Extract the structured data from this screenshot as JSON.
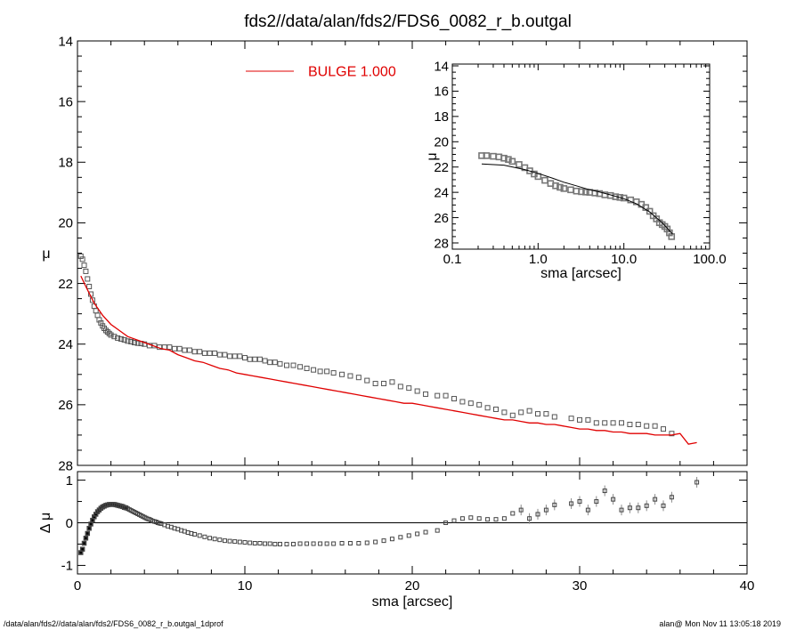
{
  "title": "fds2//data/alan/fds2/FDS6_0082_r_b.outgal",
  "footer": {
    "left": "/data/alan/fds2//data/alan/fds2/FDS6_0082_r_b.outgal_1dprof",
    "right": "alan@  Mon Nov 11 13:05:18 2019"
  },
  "legend": {
    "label": "BULGE  1.000",
    "color": "#e00000"
  },
  "chart_data": [
    {
      "type": "scatter",
      "panel": "main",
      "title": "fds2//data/alan/fds2/FDS6_0082_r_b.outgal",
      "xlabel": "",
      "ylabel": "μ",
      "xlim": [
        0,
        40
      ],
      "ylim": [
        28,
        14
      ],
      "y_inverted": true,
      "x_ticks": [
        0,
        10,
        20,
        30,
        40
      ],
      "y_ticks": [
        14,
        16,
        18,
        20,
        22,
        24,
        26,
        28
      ],
      "y_tick_labels": [
        "14",
        "16",
        "18",
        "20",
        "22",
        "24",
        "26",
        "28"
      ],
      "series": [
        {
          "name": "data",
          "marker": "open-square",
          "color": "#555555",
          "x": [
            0.2,
            0.3,
            0.4,
            0.5,
            0.6,
            0.7,
            0.8,
            0.9,
            1.0,
            1.1,
            1.2,
            1.3,
            1.4,
            1.5,
            1.6,
            1.7,
            1.8,
            1.9,
            2.0,
            2.2,
            2.4,
            2.6,
            2.8,
            3.0,
            3.2,
            3.4,
            3.6,
            3.8,
            4.0,
            4.3,
            4.6,
            4.9,
            5.2,
            5.5,
            5.8,
            6.1,
            6.4,
            6.7,
            7.0,
            7.3,
            7.6,
            7.9,
            8.2,
            8.5,
            8.8,
            9.1,
            9.4,
            9.7,
            10.0,
            10.3,
            10.6,
            10.9,
            11.2,
            11.5,
            11.8,
            12.1,
            12.5,
            12.9,
            13.3,
            13.7,
            14.1,
            14.5,
            14.9,
            15.3,
            15.8,
            16.3,
            16.8,
            17.3,
            17.8,
            18.3,
            18.8,
            19.3,
            19.8,
            20.3,
            20.8,
            21.5,
            22.0,
            22.5,
            23.0,
            23.5,
            24.0,
            24.5,
            25.0,
            25.5,
            26.0,
            26.5,
            27.0,
            27.5,
            28.0,
            28.5,
            29.5,
            30.0,
            30.5,
            31.0,
            31.5,
            32.0,
            32.5,
            33.0,
            33.5,
            34.0,
            34.5,
            35.0,
            35.5
          ],
          "y": [
            21.1,
            21.2,
            21.4,
            21.6,
            21.85,
            22.1,
            22.35,
            22.55,
            22.75,
            22.9,
            23.05,
            23.2,
            23.3,
            23.4,
            23.48,
            23.55,
            23.6,
            23.65,
            23.7,
            23.75,
            23.8,
            23.83,
            23.86,
            23.9,
            23.92,
            23.95,
            23.97,
            23.98,
            24.0,
            24.05,
            24.05,
            24.1,
            24.1,
            24.1,
            24.15,
            24.15,
            24.2,
            24.2,
            24.25,
            24.25,
            24.3,
            24.3,
            24.3,
            24.35,
            24.35,
            24.4,
            24.4,
            24.4,
            24.45,
            24.5,
            24.5,
            24.5,
            24.55,
            24.6,
            24.6,
            24.65,
            24.7,
            24.7,
            24.75,
            24.8,
            24.85,
            24.9,
            24.9,
            24.95,
            25.0,
            25.05,
            25.1,
            25.2,
            25.3,
            25.3,
            25.25,
            25.4,
            25.45,
            25.55,
            25.65,
            25.7,
            25.7,
            25.8,
            25.9,
            25.95,
            26.0,
            26.1,
            26.15,
            26.25,
            26.35,
            26.25,
            26.2,
            26.3,
            26.3,
            26.4,
            26.45,
            26.5,
            26.5,
            26.6,
            26.6,
            26.6,
            26.6,
            26.65,
            26.65,
            26.7,
            26.7,
            26.8,
            26.95
          ]
        },
        {
          "name": "BULGE  1.000",
          "marker": "line",
          "color": "#e00000",
          "x": [
            0.2,
            0.5,
            1.0,
            1.5,
            2.0,
            2.5,
            3.0,
            3.5,
            4.0,
            4.5,
            5.0,
            5.5,
            6.0,
            6.5,
            7.0,
            7.5,
            8.0,
            8.5,
            9.0,
            9.5,
            10.0,
            10.5,
            11.0,
            11.5,
            12.0,
            12.5,
            13.0,
            13.5,
            14.0,
            14.5,
            15.0,
            15.5,
            16.0,
            16.5,
            17.0,
            17.5,
            18.0,
            18.5,
            19.0,
            19.5,
            20.0,
            20.5,
            21.0,
            21.5,
            22.0,
            22.5,
            23.0,
            23.5,
            24.0,
            24.5,
            25.0,
            25.5,
            26.0,
            26.5,
            27.0,
            27.5,
            28.0,
            28.5,
            29.0,
            29.5,
            30.0,
            30.5,
            31.0,
            31.5,
            32.0,
            32.5,
            33.0,
            33.5,
            34.0,
            34.5,
            35.0,
            35.5,
            36.0,
            36.5,
            37.0
          ],
          "y": [
            21.75,
            22.1,
            22.65,
            23.05,
            23.35,
            23.55,
            23.75,
            23.85,
            23.95,
            24.05,
            24.15,
            24.2,
            24.35,
            24.45,
            24.55,
            24.6,
            24.7,
            24.8,
            24.85,
            24.95,
            25.0,
            25.05,
            25.1,
            25.15,
            25.2,
            25.25,
            25.3,
            25.35,
            25.4,
            25.45,
            25.5,
            25.55,
            25.6,
            25.65,
            25.7,
            25.75,
            25.8,
            25.85,
            25.9,
            25.95,
            25.95,
            26.0,
            26.05,
            26.1,
            26.15,
            26.2,
            26.25,
            26.3,
            26.35,
            26.4,
            26.45,
            26.5,
            26.5,
            26.55,
            26.6,
            26.6,
            26.65,
            26.65,
            26.7,
            26.75,
            26.8,
            26.8,
            26.85,
            26.85,
            26.9,
            26.9,
            26.95,
            26.95,
            26.95,
            27.0,
            27.0,
            27.0,
            26.95,
            27.3,
            27.25
          ]
        }
      ]
    },
    {
      "type": "scatter",
      "panel": "residual",
      "xlabel": "sma [arcsec]",
      "ylabel": "Δ μ",
      "xlim": [
        0,
        40
      ],
      "ylim": [
        -1.2,
        1.2
      ],
      "x_ticks": [
        0,
        10,
        20,
        30,
        40
      ],
      "x_tick_labels": [
        "0",
        "10",
        "20",
        "30",
        "40"
      ],
      "y_ticks": [
        -1,
        0,
        1
      ],
      "y_tick_labels": [
        "-1",
        "0",
        "1"
      ],
      "zero_line": true,
      "series": [
        {
          "name": "residual",
          "marker": "open-square-with-errorbar",
          "color": "#444444",
          "x": [
            0.2,
            0.3,
            0.4,
            0.5,
            0.6,
            0.7,
            0.8,
            0.9,
            1.0,
            1.1,
            1.2,
            1.3,
            1.4,
            1.5,
            1.6,
            1.7,
            1.8,
            1.9,
            2.0,
            2.1,
            2.2,
            2.3,
            2.4,
            2.5,
            2.6,
            2.7,
            2.8,
            2.9,
            3.0,
            3.1,
            3.2,
            3.3,
            3.4,
            3.5,
            3.6,
            3.7,
            3.8,
            3.9,
            4.0,
            4.1,
            4.2,
            4.3,
            4.4,
            4.5,
            4.6,
            4.7,
            4.8,
            4.9,
            5.0,
            5.2,
            5.4,
            5.6,
            5.8,
            6.0,
            6.2,
            6.4,
            6.6,
            6.8,
            7.0,
            7.3,
            7.6,
            7.9,
            8.2,
            8.5,
            8.8,
            9.1,
            9.4,
            9.7,
            10.0,
            10.3,
            10.6,
            10.9,
            11.2,
            11.5,
            11.8,
            12.1,
            12.5,
            12.9,
            13.3,
            13.7,
            14.1,
            14.5,
            14.9,
            15.3,
            15.8,
            16.3,
            16.8,
            17.3,
            17.8,
            18.3,
            18.8,
            19.3,
            19.8,
            20.3,
            20.8,
            21.5,
            22.0,
            22.5,
            23.0,
            23.5,
            24.0,
            24.5,
            25.0,
            25.5,
            26.0,
            26.5,
            27.0,
            27.5,
            28.0,
            28.5,
            29.5,
            30.0,
            30.5,
            31.0,
            31.5,
            32.0,
            32.5,
            33.0,
            33.5,
            34.0,
            34.5,
            35.0,
            35.5,
            37.0
          ],
          "y": [
            -0.7,
            -0.62,
            -0.48,
            -0.36,
            -0.25,
            -0.13,
            -0.03,
            0.06,
            0.14,
            0.2,
            0.26,
            0.3,
            0.34,
            0.37,
            0.39,
            0.41,
            0.42,
            0.43,
            0.43,
            0.43,
            0.43,
            0.42,
            0.41,
            0.4,
            0.39,
            0.38,
            0.36,
            0.35,
            0.33,
            0.31,
            0.29,
            0.27,
            0.25,
            0.23,
            0.21,
            0.19,
            0.17,
            0.15,
            0.13,
            0.11,
            0.09,
            0.08,
            0.06,
            0.04,
            0.03,
            0.02,
            0.0,
            -0.01,
            -0.02,
            -0.05,
            -0.08,
            -0.1,
            -0.13,
            -0.15,
            -0.18,
            -0.2,
            -0.23,
            -0.25,
            -0.27,
            -0.3,
            -0.33,
            -0.36,
            -0.38,
            -0.4,
            -0.42,
            -0.43,
            -0.44,
            -0.45,
            -0.46,
            -0.47,
            -0.48,
            -0.48,
            -0.49,
            -0.49,
            -0.5,
            -0.5,
            -0.5,
            -0.5,
            -0.49,
            -0.49,
            -0.49,
            -0.49,
            -0.49,
            -0.49,
            -0.48,
            -0.48,
            -0.48,
            -0.47,
            -0.45,
            -0.42,
            -0.38,
            -0.34,
            -0.3,
            -0.26,
            -0.22,
            -0.18,
            0.0,
            0.05,
            0.1,
            0.12,
            0.1,
            0.08,
            0.08,
            0.1,
            0.22,
            0.3,
            0.1,
            0.2,
            0.3,
            0.42,
            0.45,
            0.5,
            0.3,
            0.5,
            0.75,
            0.55,
            0.3,
            0.35,
            0.35,
            0.4,
            0.55,
            0.4,
            0.6,
            0.95
          ]
        }
      ]
    },
    {
      "type": "scatter",
      "panel": "inset",
      "xlabel": "sma [arcsec]",
      "ylabel": "μ",
      "xscale": "log",
      "xlim": [
        0.1,
        100.0
      ],
      "ylim": [
        28,
        14
      ],
      "y_inverted": true,
      "x_ticks": [
        0.1,
        1.0,
        10.0,
        100.0
      ],
      "x_tick_labels": [
        "0.1",
        "1.0",
        "10.0",
        "100.0"
      ],
      "y_ticks": [
        14,
        16,
        18,
        20,
        22,
        24,
        26,
        28
      ],
      "y_tick_labels": [
        "14",
        "16",
        "18",
        "20",
        "22",
        "24",
        "26",
        "28"
      ],
      "series": [
        {
          "name": "data",
          "marker": "open-square",
          "color": "#777777",
          "x": [
            0.22,
            0.25,
            0.3,
            0.35,
            0.4,
            0.45,
            0.5,
            0.6,
            0.7,
            0.8,
            0.9,
            1.0,
            1.2,
            1.4,
            1.6,
            1.8,
            2.0,
            2.4,
            2.8,
            3.2,
            3.6,
            4.0,
            4.6,
            5.2,
            6.0,
            7.0,
            8.0,
            9.0,
            10.0,
            12.0,
            14.0,
            16.0,
            18.0,
            20.0,
            22.0,
            24.0,
            26.0,
            28.0,
            30.0,
            32.0,
            34.0,
            36.0
          ],
          "y": [
            21.1,
            21.1,
            21.15,
            21.2,
            21.3,
            21.4,
            21.55,
            21.8,
            22.05,
            22.3,
            22.55,
            22.75,
            23.05,
            23.3,
            23.48,
            23.6,
            23.7,
            23.8,
            23.9,
            23.95,
            23.98,
            24.0,
            24.05,
            24.1,
            24.2,
            24.25,
            24.35,
            24.4,
            24.45,
            24.6,
            24.75,
            24.95,
            25.2,
            25.5,
            25.85,
            26.1,
            26.4,
            26.55,
            26.7,
            26.9,
            27.2,
            27.5
          ]
        },
        {
          "name": "model",
          "marker": "line",
          "color": "#000000",
          "x": [
            0.22,
            0.4,
            0.7,
            1.0,
            1.5,
            2.0,
            3.0,
            4.0,
            5.0,
            7.0,
            10.0,
            14.0,
            20.0,
            28.0,
            37.0
          ],
          "y": [
            21.75,
            21.85,
            22.2,
            22.5,
            22.9,
            23.2,
            23.55,
            23.8,
            23.95,
            24.2,
            24.5,
            24.9,
            25.55,
            26.4,
            27.3
          ]
        }
      ]
    }
  ]
}
